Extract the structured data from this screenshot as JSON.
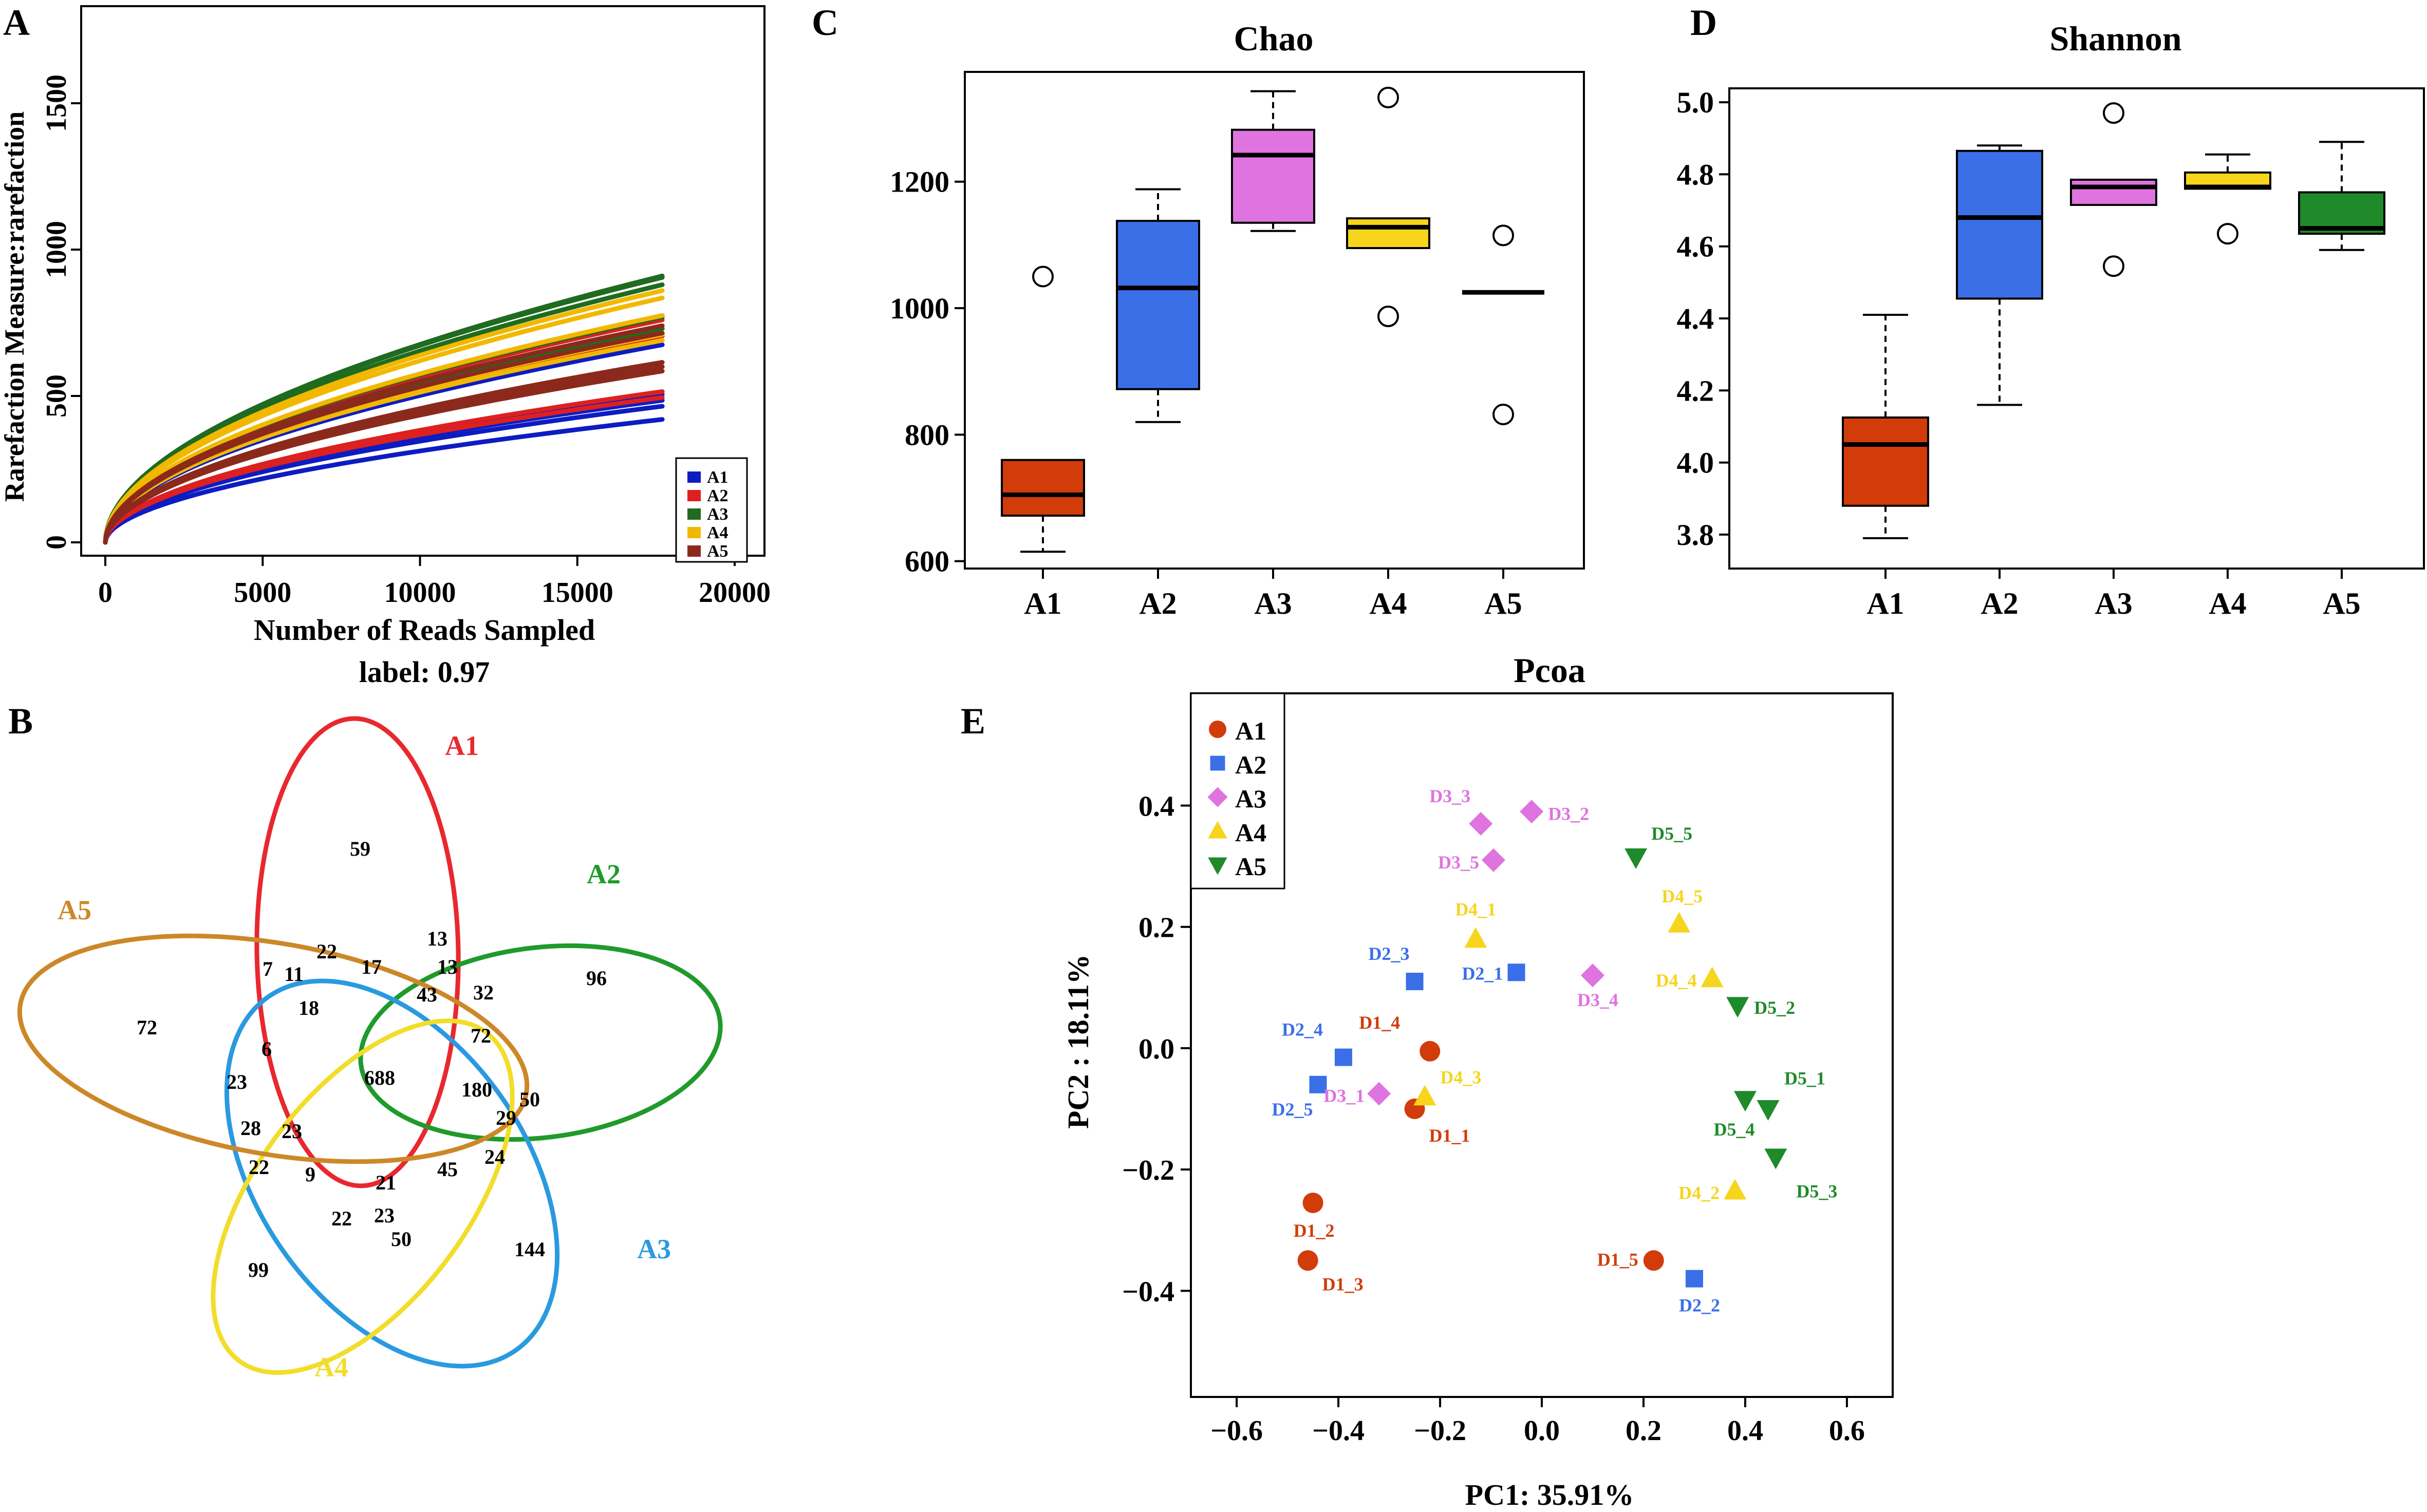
{
  "colors": {
    "A1": "#d23c0a",
    "A2": "#3a6fe8",
    "A3": "#df73df",
    "A4": "#f6d51c",
    "A5": "#1e8a2a",
    "rare_A1": "#0d1cc2",
    "rare_A2": "#dd2020",
    "rare_A3": "#1f6b1f",
    "rare_A4": "#f2b800",
    "rare_A5": "#8b2a1c",
    "venn_A1": "#e8282e",
    "venn_A2": "#1f9a2b",
    "venn_A3": "#2a9ae0",
    "venn_A4": "#f2dd2a",
    "venn_A5": "#cc8828"
  },
  "chart_data": [
    {
      "panel": "A",
      "type": "line",
      "title": "",
      "xlabel": "Number of Reads Sampled",
      "ylabel": "Rarefaction Measure:rarefaction",
      "caption": "label: 0.97",
      "xlim": [
        0,
        20000
      ],
      "ylim": [
        0,
        1800
      ],
      "x_ticks": [
        "0",
        "5000",
        "10000",
        "15000",
        "20000"
      ],
      "y_ticks": [
        "0",
        "500",
        "1000",
        "1500"
      ],
      "legend": [
        "A1",
        "A2",
        "A3",
        "A4",
        "A5"
      ],
      "x_max_sample": 17700,
      "series": [
        {
          "name": "A1",
          "finals": [
            420,
            465,
            485,
            505,
            675
          ]
        },
        {
          "name": "A2",
          "finals": [
            495,
            515,
            600,
            705,
            760
          ]
        },
        {
          "name": "A3",
          "finals": [
            730,
            770,
            880,
            905,
            910
          ]
        },
        {
          "name": "A4",
          "finals": [
            690,
            710,
            775,
            835,
            860
          ]
        },
        {
          "name": "A5",
          "finals": [
            585,
            600,
            615,
            715,
            740
          ]
        }
      ]
    },
    {
      "panel": "C",
      "type": "box",
      "title": "Chao",
      "categories": [
        "A1",
        "A2",
        "A3",
        "A4",
        "A5"
      ],
      "ylim": [
        590,
        1380
      ],
      "y_ticks": [
        "600",
        "800",
        "1000",
        "1200"
      ],
      "boxes": [
        {
          "name": "A1",
          "whisker_low": 615,
          "q1": 672,
          "median": 705,
          "q3": 760,
          "whisker_high": 760,
          "outliers": [
            1050
          ]
        },
        {
          "name": "A2",
          "whisker_low": 820,
          "q1": 872,
          "median": 1032,
          "q3": 1138,
          "whisker_high": 1188,
          "outliers": []
        },
        {
          "name": "A3",
          "whisker_low": 1122,
          "q1": 1135,
          "median": 1242,
          "q3": 1282,
          "whisker_high": 1343,
          "outliers": []
        },
        {
          "name": "A4",
          "whisker_low": 1095,
          "q1": 1095,
          "median": 1128,
          "q3": 1142,
          "whisker_high": 1142,
          "outliers": [
            987,
            1333
          ]
        },
        {
          "name": "A5",
          "whisker_low": 1025,
          "q1": 1025,
          "median": 1025,
          "q3": 1025,
          "whisker_high": 1025,
          "outliers": [
            1115,
            832
          ]
        }
      ]
    },
    {
      "panel": "D",
      "type": "box",
      "title": "Shannon",
      "categories": [
        "A1",
        "A2",
        "A3",
        "A4",
        "A5"
      ],
      "ylim": [
        3.73,
        5.06
      ],
      "y_ticks": [
        "3.8",
        "4.0",
        "4.2",
        "4.4",
        "4.6",
        "4.8",
        "5.0"
      ],
      "boxes": [
        {
          "name": "A1",
          "whisker_low": 3.79,
          "q1": 3.88,
          "median": 4.05,
          "q3": 4.125,
          "whisker_high": 4.41,
          "outliers": []
        },
        {
          "name": "A2",
          "whisker_low": 4.16,
          "q1": 4.455,
          "median": 4.68,
          "q3": 4.865,
          "whisker_high": 4.88,
          "outliers": []
        },
        {
          "name": "A3",
          "whisker_low": 4.715,
          "q1": 4.715,
          "median": 4.765,
          "q3": 4.785,
          "whisker_high": 4.785,
          "outliers": [
            4.97,
            4.545
          ]
        },
        {
          "name": "A4",
          "whisker_low": 4.76,
          "q1": 4.76,
          "median": 4.765,
          "q3": 4.805,
          "whisker_high": 4.855,
          "outliers": [
            4.635
          ]
        },
        {
          "name": "A5",
          "whisker_low": 4.59,
          "q1": 4.635,
          "median": 4.65,
          "q3": 4.75,
          "whisker_high": 4.89,
          "outliers": []
        }
      ]
    },
    {
      "panel": "B",
      "type": "venn",
      "sets": [
        "A1",
        "A2",
        "A3",
        "A4",
        "A5"
      ],
      "region_counts": [
        "59",
        "96",
        "144",
        "99",
        "72",
        "13",
        "22",
        "17",
        "13",
        "7",
        "11",
        "43",
        "32",
        "18",
        "72",
        "6",
        "688",
        "180",
        "50",
        "23",
        "29",
        "28",
        "23",
        "24",
        "22",
        "9",
        "21",
        "45",
        "23",
        "22",
        "50"
      ]
    },
    {
      "panel": "E",
      "type": "scatter",
      "title": "Pcoa",
      "xlabel": "PC1: 35.91%",
      "ylabel": "PC2 :  18.11%",
      "xlim": [
        -0.69,
        0.69
      ],
      "ylim": [
        -0.575,
        0.585
      ],
      "x_ticks": [
        "−0.6",
        "−0.4",
        "−0.2",
        "0.0",
        "0.2",
        "0.4",
        "0.6"
      ],
      "y_ticks": [
        "−0.4",
        "−0.2",
        "0.0",
        "0.2",
        "0.4"
      ],
      "legend": [
        "A1",
        "A2",
        "A3",
        "A4",
        "A5"
      ],
      "points": [
        {
          "group": "A1",
          "label": "D1_1",
          "x": -0.25,
          "y": -0.1
        },
        {
          "group": "A1",
          "label": "D1_2",
          "x": -0.45,
          "y": -0.255
        },
        {
          "group": "A1",
          "label": "D1_3",
          "x": -0.46,
          "y": -0.35
        },
        {
          "group": "A1",
          "label": "D1_4",
          "x": -0.22,
          "y": -0.005
        },
        {
          "group": "A1",
          "label": "D1_5",
          "x": 0.22,
          "y": -0.35
        },
        {
          "group": "A2",
          "label": "D2_1",
          "x": -0.05,
          "y": 0.125
        },
        {
          "group": "A2",
          "label": "D2_2",
          "x": 0.3,
          "y": -0.38
        },
        {
          "group": "A2",
          "label": "D2_3",
          "x": -0.25,
          "y": 0.11
        },
        {
          "group": "A2",
          "label": "D2_4",
          "x": -0.39,
          "y": -0.015
        },
        {
          "group": "A2",
          "label": "D2_5",
          "x": -0.44,
          "y": -0.06
        },
        {
          "group": "A3",
          "label": "D3_1",
          "x": -0.32,
          "y": -0.075
        },
        {
          "group": "A3",
          "label": "D3_2",
          "x": -0.02,
          "y": 0.39
        },
        {
          "group": "A3",
          "label": "D3_3",
          "x": -0.12,
          "y": 0.37
        },
        {
          "group": "A3",
          "label": "D3_4",
          "x": 0.1,
          "y": 0.12
        },
        {
          "group": "A3",
          "label": "D3_5",
          "x": -0.095,
          "y": 0.31
        },
        {
          "group": "A4",
          "label": "D4_1",
          "x": -0.13,
          "y": 0.18
        },
        {
          "group": "A4",
          "label": "D4_2",
          "x": 0.38,
          "y": -0.235
        },
        {
          "group": "A4",
          "label": "D4_3",
          "x": -0.23,
          "y": -0.08
        },
        {
          "group": "A4",
          "label": "D4_4",
          "x": 0.335,
          "y": 0.115
        },
        {
          "group": "A4",
          "label": "D4_5",
          "x": 0.27,
          "y": 0.205
        },
        {
          "group": "A5",
          "label": "D5_1",
          "x": 0.4,
          "y": -0.085
        },
        {
          "group": "A5",
          "label": "D5_2",
          "x": 0.385,
          "y": 0.07
        },
        {
          "group": "A5",
          "label": "D5_3",
          "x": 0.46,
          "y": -0.18
        },
        {
          "group": "A5",
          "label": "D5_4",
          "x": 0.445,
          "y": -0.1
        },
        {
          "group": "A5",
          "label": "D5_5",
          "x": 0.185,
          "y": 0.315
        }
      ]
    }
  ],
  "panel_letters": [
    "A",
    "B",
    "C",
    "D",
    "E"
  ]
}
